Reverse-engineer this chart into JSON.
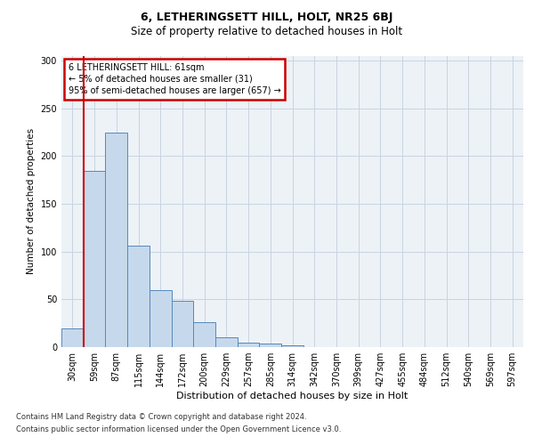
{
  "title1": "6, LETHERINGSETT HILL, HOLT, NR25 6BJ",
  "title2": "Size of property relative to detached houses in Holt",
  "xlabel": "Distribution of detached houses by size in Holt",
  "ylabel": "Number of detached properties",
  "bin_labels": [
    "30sqm",
    "59sqm",
    "87sqm",
    "115sqm",
    "144sqm",
    "172sqm",
    "200sqm",
    "229sqm",
    "257sqm",
    "285sqm",
    "314sqm",
    "342sqm",
    "370sqm",
    "399sqm",
    "427sqm",
    "455sqm",
    "484sqm",
    "512sqm",
    "540sqm",
    "569sqm",
    "597sqm"
  ],
  "bar_heights": [
    20,
    184,
    224,
    106,
    60,
    48,
    26,
    10,
    5,
    4,
    2,
    0,
    0,
    0,
    0,
    0,
    0,
    0,
    0,
    0,
    0
  ],
  "bar_color": "#c6d9ec",
  "bar_edge_color": "#5588bb",
  "vline_x_idx": 1,
  "annotation_title": "6 LETHERINGSETT HILL: 61sqm",
  "annotation_line1": "← 5% of detached houses are smaller (31)",
  "annotation_line2": "95% of semi-detached houses are larger (657) →",
  "annotation_box_color": "#ffffff",
  "annotation_box_edge": "#cc0000",
  "vline_color": "#cc0000",
  "ylim": [
    0,
    305
  ],
  "yticks": [
    0,
    50,
    100,
    150,
    200,
    250,
    300
  ],
  "footer1": "Contains HM Land Registry data © Crown copyright and database right 2024.",
  "footer2": "Contains public sector information licensed under the Open Government Licence v3.0.",
  "bg_color": "#edf2f7",
  "grid_color": "#c8d4e0",
  "title1_fontsize": 9,
  "title2_fontsize": 8.5,
  "ylabel_fontsize": 7.5,
  "xlabel_fontsize": 8,
  "tick_fontsize": 7,
  "ann_fontsize": 7,
  "footer_fontsize": 6
}
